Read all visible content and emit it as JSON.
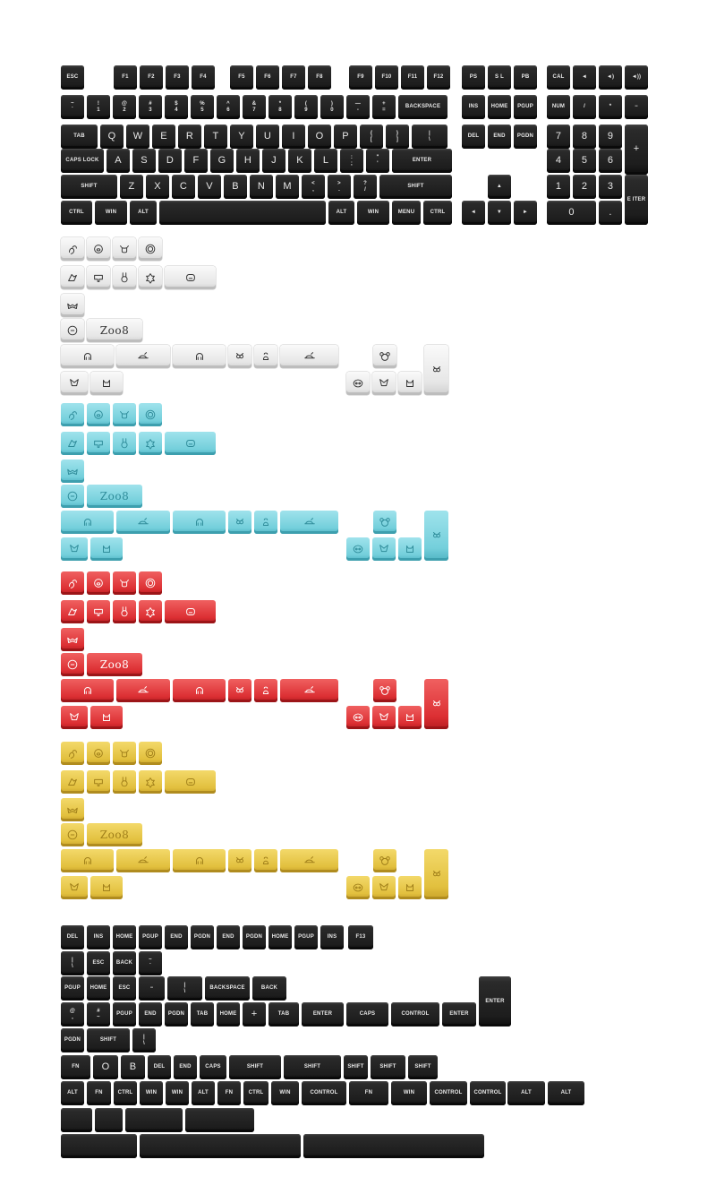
{
  "keyboard": {
    "fn_row": [
      "ESC",
      "F1",
      "F2",
      "F3",
      "F4",
      "F5",
      "F6",
      "F7",
      "F8",
      "F9",
      "F10",
      "F11",
      "F12",
      "PS",
      "S L",
      "PB",
      "CAL",
      "◄",
      "◄)",
      "◄))"
    ],
    "num_row": [
      "~\n`",
      "!\n1",
      "@\n2",
      "#\n3",
      "$\n4",
      "%\n5",
      "^\n6",
      "&\n7",
      "*\n8",
      "(\n9",
      ")\n0",
      "—\n-",
      "+\n=",
      "BACKSPACE",
      "INS",
      "HOME",
      "PGUP",
      "NUM",
      "/",
      "*",
      "−"
    ],
    "tab_row": [
      "TAB",
      "Q",
      "W",
      "E",
      "R",
      "T",
      "Y",
      "U",
      "I",
      "O",
      "P",
      "{\n[",
      "}\n]",
      "|\n\\",
      "DEL",
      "END",
      "PGDN",
      "7",
      "8",
      "9",
      "+"
    ],
    "caps_row": [
      "CAPS LOCK",
      "A",
      "S",
      "D",
      "F",
      "G",
      "H",
      "J",
      "K",
      "L",
      ":\n;",
      "\"\n'",
      "ENTER",
      "4",
      "5",
      "6"
    ],
    "shift_row": [
      "SHIFT",
      "Z",
      "X",
      "C",
      "V",
      "B",
      "N",
      "M",
      "<\n,",
      ">\n.",
      "?\n/",
      "SHIFT",
      "▲",
      "1",
      "2",
      "3",
      "E ITER"
    ],
    "bottom_row": [
      "CTRL",
      "WIN",
      "ALT",
      "",
      "ALT",
      "WIN",
      "MENU",
      "CTRL",
      "◄",
      "▼",
      "►",
      "0",
      "."
    ]
  },
  "novelty": {
    "logo_text": "Zoo8",
    "icons": [
      "squirrel-icon",
      "pig-icon",
      "bull-icon",
      "lion-icon",
      "bird-icon",
      "elephant-icon",
      "rabbit-icon",
      "turtle-icon",
      "bulldog-icon",
      "bat-icon",
      "chick-icon",
      "octopus-icon",
      "whale-icon",
      "owl-icon",
      "bee-icon",
      "fox-icon",
      "cat-icon",
      "koala-icon",
      "panda-icon"
    ]
  },
  "extras": {
    "row1": [
      "DEL",
      "INS",
      "HOME",
      "PGUP",
      "END",
      "PGDN",
      "END",
      "PGDN",
      "HOME",
      "PGUP",
      "INS",
      "F13"
    ],
    "row2": [
      "|\n\\",
      "ESC",
      "BACK",
      "~\n`"
    ],
    "row3": [
      "PGUP",
      "HOME",
      "ESC",
      "−",
      "|\n\\",
      "BACKSPACE",
      "BACK",
      "ENTER"
    ],
    "row4": [
      "@\n,",
      "#\n~",
      "PGUP",
      "END",
      "PGDN",
      "TAB",
      "HOME",
      "+",
      "TAB",
      "ENTER",
      "CAPS",
      "CONTROL",
      "ENTER"
    ],
    "row5": [
      "PGDN",
      "SHIFT",
      "|\n\\"
    ],
    "row6": [
      "FN",
      "O",
      "B",
      "DEL",
      "END",
      "CAPS",
      "SHIFT",
      "SHIFT",
      "SHIFT",
      "SHIFT",
      "SHIFT"
    ],
    "row7": [
      "ALT",
      "FN",
      "CTRL",
      "WIN",
      "WIN",
      "ALT",
      "FN",
      "CTRL",
      "WIN",
      "CONTROL",
      "FN",
      "WIN",
      "CONTROL",
      "CONTROL",
      "ALT",
      "ALT"
    ],
    "row8": [
      "",
      "",
      "",
      ""
    ],
    "row9": [
      "",
      "",
      ""
    ]
  },
  "colors": {
    "white": "#ececec",
    "cyan": "#74cfdb",
    "red": "#dc2f33",
    "yellow": "#e2c03e",
    "black": "#1f1f1f"
  }
}
